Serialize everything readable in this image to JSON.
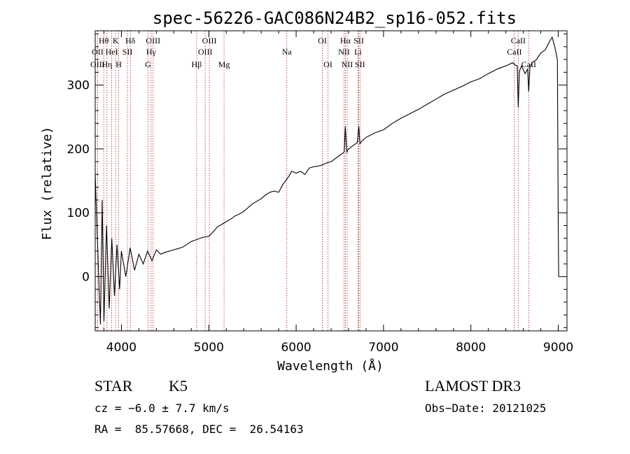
{
  "chart_data": {
    "type": "line",
    "title": "spec-56226-GAC086N24B2_sp16-052.fits",
    "xlabel": "Wavelength (Å)",
    "ylabel": "Flux (relative)",
    "xlim": [
      3700,
      9100
    ],
    "ylim": [
      -85,
      385
    ],
    "xticks": [
      4000,
      5000,
      6000,
      7000,
      8000,
      9000
    ],
    "xtick_labels": [
      "4000",
      "5000",
      "6000",
      "7000",
      "8000",
      "9000"
    ],
    "yticks": [
      0,
      100,
      200,
      300
    ],
    "ytick_labels": [
      "0",
      "100",
      "200",
      "300"
    ],
    "grid": false,
    "line_color": "#000000",
    "marker_color": "#b22222",
    "series": [
      {
        "x": [
          3700,
          3740,
          3760,
          3780,
          3800,
          3830,
          3860,
          3890,
          3920,
          3950,
          3980,
          4000,
          4050,
          4100,
          4150,
          4200,
          4250,
          4300,
          4350,
          4400,
          4450,
          4500,
          4600,
          4700,
          4800,
          4860,
          4900,
          4950,
          5000,
          5050,
          5100,
          5150,
          5200,
          5250,
          5300,
          5350,
          5400,
          5450,
          5500,
          5550,
          5600,
          5650,
          5700,
          5750,
          5800,
          5850,
          5880,
          5920,
          5950,
          6000,
          6050,
          6100,
          6150,
          6200,
          6250,
          6300,
          6350,
          6400,
          6450,
          6500,
          6550,
          6563,
          6580,
          6600,
          6650,
          6700,
          6717,
          6730,
          6750,
          6800,
          6900,
          7000,
          7100,
          7200,
          7300,
          7400,
          7500,
          7600,
          7700,
          7800,
          7900,
          8000,
          8100,
          8200,
          8300,
          8400,
          8480,
          8500,
          8530,
          8542,
          8555,
          8580,
          8620,
          8650,
          8662,
          8675,
          8700,
          8750,
          8800,
          8850,
          8900,
          8930,
          8960,
          8990,
          9000,
          9005
        ],
        "y": [
          160,
          0,
          -75,
          120,
          -70,
          80,
          -50,
          60,
          -30,
          50,
          -20,
          40,
          0,
          45,
          10,
          35,
          20,
          40,
          25,
          42,
          35,
          38,
          42,
          46,
          55,
          58,
          60,
          62,
          63,
          70,
          78,
          82,
          86,
          90,
          95,
          98,
          102,
          108,
          114,
          118,
          122,
          128,
          132,
          134,
          132,
          145,
          150,
          158,
          165,
          162,
          165,
          160,
          170,
          172,
          173,
          175,
          178,
          180,
          185,
          190,
          195,
          235,
          195,
          200,
          205,
          210,
          235,
          208,
          212,
          218,
          225,
          230,
          240,
          248,
          255,
          262,
          270,
          278,
          286,
          292,
          298,
          305,
          310,
          318,
          325,
          330,
          335,
          332,
          330,
          265,
          322,
          330,
          318,
          325,
          290,
          328,
          335,
          340,
          350,
          355,
          368,
          375,
          360,
          340,
          80,
          0
        ]
      }
    ],
    "line_markers": [
      {
        "label": "Hθ",
        "x": 3798,
        "row": 1
      },
      {
        "label": "OII",
        "x": 3727,
        "row": 2
      },
      {
        "label": "OIII",
        "x": 3727,
        "row": 3
      },
      {
        "label": "K",
        "x": 3934,
        "row": 1
      },
      {
        "label": "HeI",
        "x": 3889,
        "row": 2
      },
      {
        "label": "Hη",
        "x": 3835,
        "row": 3
      },
      {
        "label": "SII",
        "x": 4069,
        "row": 2
      },
      {
        "label": "H",
        "x": 3969,
        "row": 3
      },
      {
        "label": "Hδ",
        "x": 4102,
        "row": 1
      },
      {
        "label": "OIII",
        "x": 4363,
        "row": 1
      },
      {
        "label": "Hγ",
        "x": 4340,
        "row": 2
      },
      {
        "label": "G",
        "x": 4305,
        "row": 3
      },
      {
        "label": "OIII",
        "x": 5007,
        "row": 1
      },
      {
        "label": "OIII",
        "x": 4959,
        "row": 2
      },
      {
        "label": "Hβ",
        "x": 4861,
        "row": 3
      },
      {
        "label": "Mg",
        "x": 5175,
        "row": 3
      },
      {
        "label": "Na",
        "x": 5893,
        "row": 2
      },
      {
        "label": "OI",
        "x": 6300,
        "row": 1
      },
      {
        "label": "OI",
        "x": 6364,
        "row": 3
      },
      {
        "label": "Hα",
        "x": 6563,
        "row": 1
      },
      {
        "label": "NII",
        "x": 6548,
        "row": 2
      },
      {
        "label": "NII",
        "x": 6584,
        "row": 3
      },
      {
        "label": "SII",
        "x": 6717,
        "row": 1
      },
      {
        "label": "Li",
        "x": 6708,
        "row": 2
      },
      {
        "label": "SII",
        "x": 6731,
        "row": 3
      },
      {
        "label": "CaII",
        "x": 8542,
        "row": 1
      },
      {
        "label": "CaII",
        "x": 8498,
        "row": 2
      },
      {
        "label": "CaII",
        "x": 8662,
        "row": 3
      }
    ]
  },
  "info": {
    "object_class": "STAR",
    "subclass": "K5",
    "survey": "LAMOST DR3",
    "cz": "cz = −6.0 ± 7.7 km/s",
    "obs_date": "Obs−Date: 20121025",
    "coords": "RA =  85.57668, DEC =  26.54163"
  }
}
